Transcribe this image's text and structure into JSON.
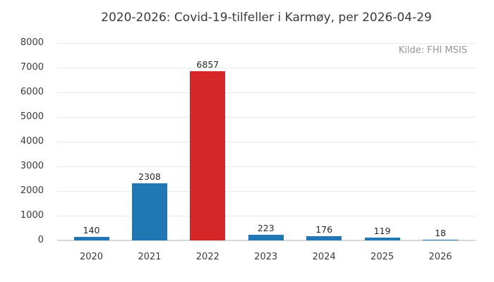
{
  "chart_data": {
    "type": "bar",
    "title": "2020-2026: Covid-19-tilfeller i Karmøy, per 2026-04-29",
    "source_note": "Kilde: FHI MSIS",
    "categories": [
      "2020",
      "2021",
      "2022",
      "2023",
      "2024",
      "2025",
      "2026"
    ],
    "values": [
      140,
      2308,
      6857,
      223,
      176,
      119,
      18
    ],
    "value_labels_shown": true,
    "bar_colors": [
      "#2077b4",
      "#2077b4",
      "#d62728",
      "#2077b4",
      "#2077b4",
      "#2077b4",
      "#2077b4"
    ],
    "highlight_index": 2,
    "xlabel": "",
    "ylabel": "",
    "ylim": [
      0,
      8000
    ],
    "yticks": [
      0,
      1000,
      2000,
      3000,
      4000,
      5000,
      6000,
      7000,
      8000
    ],
    "grid": "horizontal",
    "legend": "none",
    "colors": {
      "bar_default": "#2077b4",
      "bar_highlight": "#d62728",
      "gridline": "#e9e9e9",
      "baseline": "#d9d9d9",
      "tick_text": "#3a3a3a",
      "value_label_text": "#262626",
      "source_text": "#979797",
      "background": "#ffffff"
    }
  }
}
